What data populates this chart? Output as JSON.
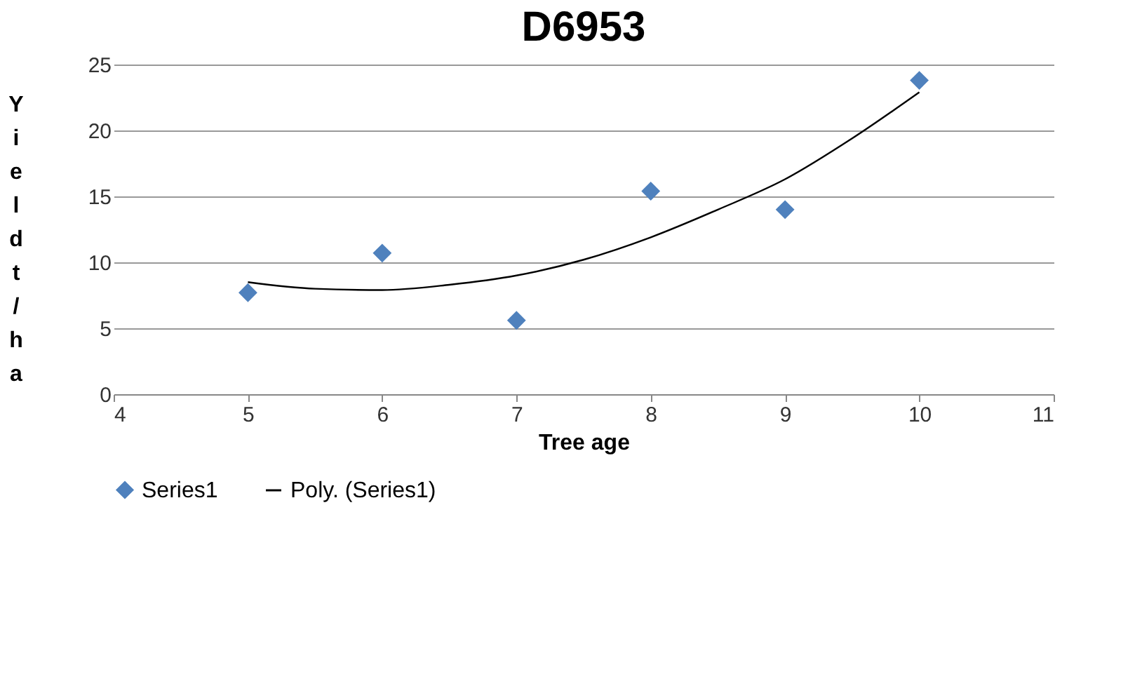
{
  "chart_data": {
    "type": "scatter",
    "title": "D6953",
    "xlabel": "Tree age",
    "ylabel": "Yield t/ha",
    "x": [
      5,
      6,
      7,
      8,
      9,
      10
    ],
    "series": [
      {
        "name": "Series1",
        "color": "#4f81bd",
        "marker": "diamond",
        "values": [
          7.7,
          10.7,
          5.6,
          15.4,
          14.0,
          23.8
        ]
      },
      {
        "name": "Poly. (Series1)",
        "type": "line",
        "color": "#000000",
        "marker": "none",
        "x": [
          5,
          5.5,
          6,
          6.5,
          7,
          7.5,
          8,
          8.5,
          9,
          9.5,
          10
        ],
        "values": [
          8.5,
          8.0,
          7.9,
          8.3,
          9.0,
          10.2,
          11.9,
          14.0,
          16.3,
          19.4,
          22.9
        ]
      }
    ],
    "xlim": [
      4,
      11
    ],
    "xticks": [
      4,
      5,
      6,
      7,
      8,
      9,
      10,
      11
    ],
    "ylim": [
      0,
      25
    ],
    "yticks": [
      0,
      5,
      10,
      15,
      20,
      25
    ],
    "grid": "y",
    "legend": "bottom"
  }
}
